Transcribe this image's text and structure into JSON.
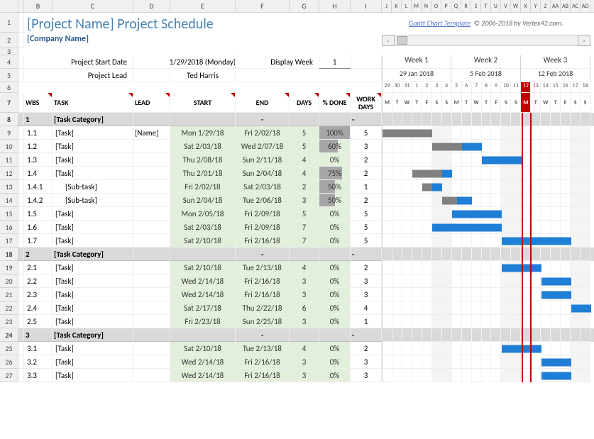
{
  "title": "[Project Name] Project Schedule",
  "company": "[Company Name]",
  "credit_link": "Gantt Chart Template",
  "credit_text": "© 2006-2018 by Vertex42.com.",
  "labels": {
    "start_date": "Project Start Date",
    "lead": "Project Lead",
    "display_week": "Display Week"
  },
  "values": {
    "start_date": "1/29/2018 (Monday)",
    "lead": "Ted Harris",
    "display_week": "1"
  },
  "headers": {
    "wbs": "WBS",
    "task": "TASK",
    "lead": "LEAD",
    "start": "START",
    "end": "END",
    "days": "DAYS",
    "pct": "% DONE",
    "wd": "WORK DAYS"
  },
  "col_letters": [
    "A",
    "B",
    "C",
    "D",
    "E",
    "F",
    "G",
    "H",
    "I",
    "J",
    "K",
    "L",
    "M",
    "N",
    "O",
    "P",
    "Q",
    "R",
    "S",
    "T",
    "U",
    "V",
    "W",
    "X",
    "Y",
    "Z",
    "AA",
    "AB",
    "AC",
    "AD",
    "AE"
  ],
  "row_numbers": [
    1,
    2,
    3,
    4,
    5,
    6,
    7,
    8,
    9,
    10,
    11,
    12,
    13,
    14,
    15,
    16,
    17,
    18,
    19,
    20,
    21,
    22,
    23,
    24,
    25,
    26,
    27
  ],
  "weeks": [
    {
      "label": "Week 1",
      "date": "29 Jan 2018"
    },
    {
      "label": "Week 2",
      "date": "5 Feb 2018"
    },
    {
      "label": "Week 3",
      "date": "12 Feb 2018"
    }
  ],
  "day_nums": [
    "29",
    "30",
    "31",
    "1",
    "2",
    "3",
    "4",
    "5",
    "6",
    "7",
    "8",
    "9",
    "10",
    "11",
    "12",
    "13",
    "14",
    "15",
    "16",
    "17",
    "18"
  ],
  "day_letters": [
    "M",
    "T",
    "W",
    "T",
    "F",
    "S",
    "S",
    "M",
    "T",
    "W",
    "T",
    "F",
    "S",
    "S",
    "M",
    "T",
    "W",
    "T",
    "F",
    "S",
    "S"
  ],
  "today_index": 14,
  "weekend_indices": [
    5,
    6,
    12,
    13,
    19,
    20
  ],
  "rows": [
    {
      "type": "cat",
      "wbs": "1",
      "task": "[Task Category]",
      "end": "-",
      "wd": "-"
    },
    {
      "type": "task",
      "wbs": "1.1",
      "task": "[Task]",
      "lead": "[Name]",
      "start": "Mon 1/29/18",
      "end": "Fri 2/02/18",
      "days": "5",
      "pct": "100%",
      "pctv": 100,
      "wd": "5",
      "g": [
        0,
        5
      ],
      "done": 5
    },
    {
      "type": "task",
      "wbs": "1.2",
      "task": "[Task]",
      "start": "Sat 2/03/18",
      "end": "Wed 2/07/18",
      "days": "5",
      "pct": "60%",
      "pctv": 60,
      "wd": "3",
      "g": [
        5,
        5
      ],
      "done": 3
    },
    {
      "type": "task",
      "wbs": "1.3",
      "task": "[Task]",
      "start": "Thu 2/08/18",
      "end": "Sun 2/11/18",
      "days": "4",
      "pct": "0%",
      "pctv": 0,
      "wd": "2",
      "g": [
        10,
        4
      ],
      "done": 0
    },
    {
      "type": "task",
      "wbs": "1.4",
      "task": "[Task]",
      "start": "Thu 2/01/18",
      "end": "Sun 2/04/18",
      "days": "4",
      "pct": "75%",
      "pctv": 75,
      "wd": "2",
      "g": [
        3,
        4
      ],
      "done": 3
    },
    {
      "type": "task",
      "wbs": "1.4.1",
      "task": "[Sub-task]",
      "indent": true,
      "start": "Fri 2/02/18",
      "end": "Sat 2/03/18",
      "days": "2",
      "pct": "50%",
      "pctv": 50,
      "wd": "1",
      "g": [
        4,
        2
      ],
      "done": 1
    },
    {
      "type": "task",
      "wbs": "1.4.2",
      "task": "[Sub-task]",
      "indent": true,
      "start": "Sun 2/04/18",
      "end": "Tue 2/06/18",
      "days": "3",
      "pct": "50%",
      "pctv": 50,
      "wd": "2",
      "g": [
        6,
        3
      ],
      "done": 1.5
    },
    {
      "type": "task",
      "wbs": "1.5",
      "task": "[Task]",
      "start": "Mon 2/05/18",
      "end": "Fri 2/09/18",
      "days": "5",
      "pct": "0%",
      "pctv": 0,
      "wd": "5",
      "g": [
        7,
        5
      ],
      "done": 0
    },
    {
      "type": "task",
      "wbs": "1.6",
      "task": "[Task]",
      "start": "Sat 2/03/18",
      "end": "Fri 2/09/18",
      "days": "7",
      "pct": "0%",
      "pctv": 0,
      "wd": "5",
      "g": [
        5,
        7
      ],
      "done": 0
    },
    {
      "type": "task",
      "wbs": "1.7",
      "task": "[Task]",
      "start": "Sat 2/10/18",
      "end": "Fri 2/16/18",
      "days": "7",
      "pct": "0%",
      "pctv": 0,
      "wd": "5",
      "g": [
        12,
        7
      ],
      "done": 0
    },
    {
      "type": "cat",
      "wbs": "2",
      "task": "[Task Category]",
      "end": "-",
      "wd": "-"
    },
    {
      "type": "task",
      "wbs": "2.1",
      "task": "[Task]",
      "start": "Sat 2/10/18",
      "end": "Tue 2/13/18",
      "days": "4",
      "pct": "0%",
      "pctv": 0,
      "wd": "2",
      "g": [
        12,
        4
      ],
      "done": 0
    },
    {
      "type": "task",
      "wbs": "2.2",
      "task": "[Task]",
      "start": "Wed 2/14/18",
      "end": "Fri 2/16/18",
      "days": "3",
      "pct": "0%",
      "pctv": 0,
      "wd": "3",
      "g": [
        16,
        3
      ],
      "done": 0
    },
    {
      "type": "task",
      "wbs": "2.3",
      "task": "[Task]",
      "start": "Wed 2/14/18",
      "end": "Fri 2/16/18",
      "days": "3",
      "pct": "0%",
      "pctv": 0,
      "wd": "3",
      "g": [
        16,
        3
      ],
      "done": 0
    },
    {
      "type": "task",
      "wbs": "2.4",
      "task": "[Task]",
      "start": "Sat 2/17/18",
      "end": "Thu 2/22/18",
      "days": "6",
      "pct": "0%",
      "pctv": 0,
      "wd": "4",
      "g": [
        19,
        2
      ],
      "done": 0
    },
    {
      "type": "task",
      "wbs": "2.5",
      "task": "[Task]",
      "start": "Fri 2/23/18",
      "end": "Sun 2/25/18",
      "days": "3",
      "pct": "0%",
      "pctv": 0,
      "wd": "1"
    },
    {
      "type": "cat",
      "wbs": "3",
      "task": "[Task Category]",
      "end": "-",
      "wd": "-"
    },
    {
      "type": "task",
      "wbs": "3.1",
      "task": "[Task]",
      "start": "Sat 2/10/18",
      "end": "Tue 2/13/18",
      "days": "4",
      "pct": "0%",
      "pctv": 0,
      "wd": "2",
      "g": [
        12,
        4
      ],
      "done": 0
    },
    {
      "type": "task",
      "wbs": "3.2",
      "task": "[Task]",
      "start": "Wed 2/14/18",
      "end": "Fri 2/16/18",
      "days": "3",
      "pct": "0%",
      "pctv": 0,
      "wd": "3",
      "g": [
        16,
        3
      ],
      "done": 0
    },
    {
      "type": "task",
      "wbs": "3.3",
      "task": "[Task]",
      "start": "Wed 2/14/18",
      "end": "Fri 2/16/18",
      "days": "3",
      "pct": "0%",
      "pctv": 0,
      "wd": "3",
      "g": [
        16,
        3
      ],
      "done": 0
    }
  ],
  "colors": {
    "title": "#4682b4",
    "bar": "#1f7ed6",
    "done": "#808080",
    "today": "#c00000",
    "green_bg": "#e2efda",
    "cat_bg": "#d9d9d9"
  }
}
